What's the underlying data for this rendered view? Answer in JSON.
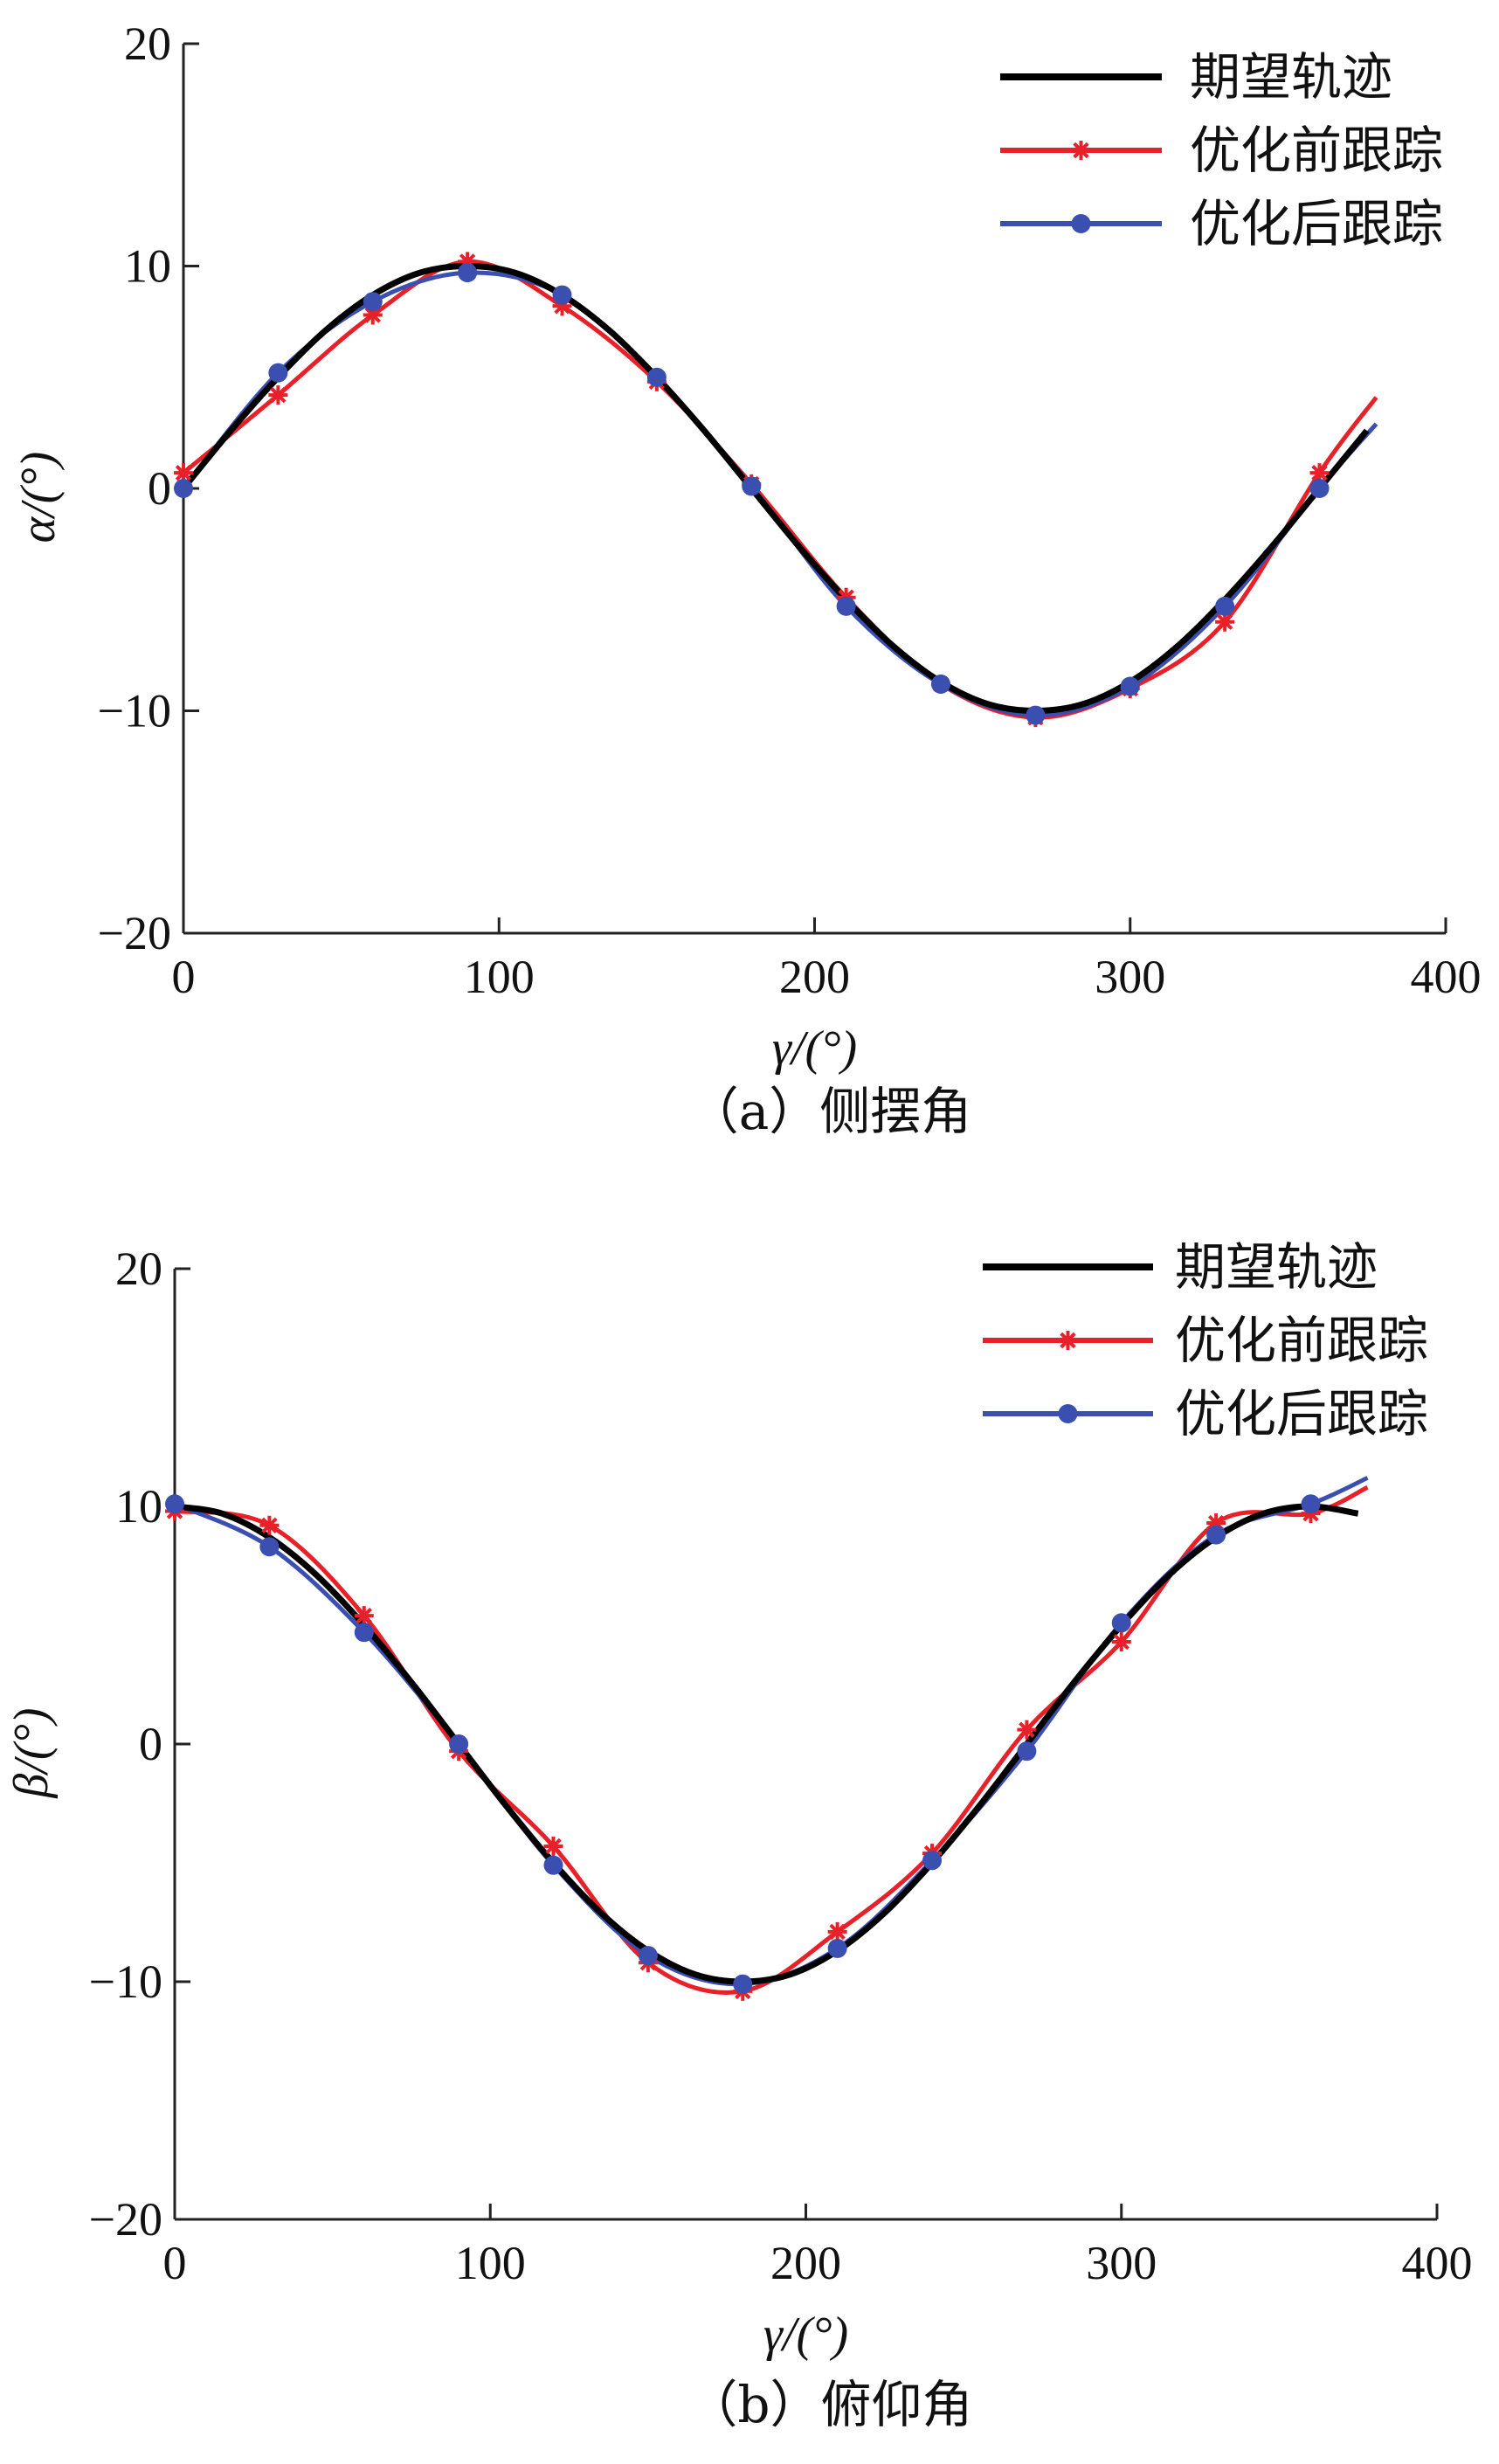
{
  "chart_data": [
    {
      "type": "line",
      "caption": "（a）侧摆角",
      "xlabel": "γ/(°)",
      "ylabel": "α/(°)",
      "xlim": [
        0,
        400
      ],
      "ylim": [
        -20,
        20
      ],
      "xticks": [
        "0",
        "100",
        "200",
        "300",
        "400"
      ],
      "yticks": [
        "20",
        "10",
        "0",
        "−10",
        "−20"
      ],
      "grid": false,
      "legend_position": "top-right",
      "series": [
        {
          "name": "期望轨迹",
          "color": "#000000",
          "marker": "none",
          "x": [
            0,
            15,
            30,
            45,
            60,
            75,
            90,
            105,
            120,
            135,
            150,
            165,
            180,
            195,
            210,
            225,
            240,
            255,
            270,
            285,
            300,
            315,
            330,
            345,
            360,
            375
          ],
          "y": [
            0,
            2.6,
            5.0,
            7.1,
            8.7,
            9.7,
            10.0,
            9.7,
            8.7,
            7.1,
            5.0,
            2.6,
            0,
            -2.6,
            -5.0,
            -7.1,
            -8.7,
            -9.7,
            -10.0,
            -9.7,
            -8.7,
            -7.1,
            -5.0,
            -2.6,
            0,
            2.6
          ]
        },
        {
          "name": "优化前跟踪",
          "color": "#e8202a",
          "marker": "asterisk",
          "x": [
            0,
            30,
            60,
            90,
            120,
            150,
            180,
            210,
            240,
            270,
            300,
            330,
            360,
            378
          ],
          "y": [
            0.7,
            4.2,
            7.8,
            10.2,
            8.2,
            4.8,
            0.2,
            -4.9,
            -8.8,
            -10.3,
            -9.0,
            -6.0,
            0.7,
            4.1
          ],
          "marker_x": [
            0,
            30,
            60,
            90,
            120,
            150,
            180,
            210,
            240,
            270,
            300,
            330,
            360
          ],
          "marker_y": [
            0.7,
            4.2,
            7.8,
            10.2,
            8.2,
            4.8,
            0.2,
            -4.9,
            -8.8,
            -10.3,
            -9.0,
            -6.0,
            0.7
          ]
        },
        {
          "name": "优化后跟踪",
          "color": "#3b4fb0",
          "marker": "circle",
          "x": [
            0,
            30,
            60,
            90,
            120,
            150,
            180,
            210,
            240,
            270,
            300,
            330,
            360,
            378
          ],
          "y": [
            0,
            5.2,
            8.4,
            9.7,
            8.7,
            5.0,
            0.1,
            -5.3,
            -8.8,
            -10.2,
            -8.9,
            -5.3,
            0,
            2.9
          ],
          "marker_x": [
            0,
            30,
            60,
            90,
            120,
            150,
            180,
            210,
            240,
            270,
            300,
            330,
            360
          ],
          "marker_y": [
            0,
            5.2,
            8.4,
            9.7,
            8.7,
            5.0,
            0.1,
            -5.3,
            -8.8,
            -10.2,
            -8.9,
            -5.3,
            0
          ]
        }
      ]
    },
    {
      "type": "line",
      "caption": "（b）俯仰角",
      "xlabel": "γ/(°)",
      "ylabel": "β/(°)",
      "xlim": [
        0,
        400
      ],
      "ylim": [
        -20,
        20
      ],
      "xticks": [
        "0",
        "100",
        "200",
        "300",
        "400"
      ],
      "yticks": [
        "20",
        "10",
        "0",
        "−10",
        "−20"
      ],
      "grid": false,
      "legend_position": "top-right",
      "series": [
        {
          "name": "期望轨迹",
          "color": "#000000",
          "marker": "none",
          "x": [
            0,
            15,
            30,
            45,
            60,
            75,
            90,
            105,
            120,
            135,
            150,
            165,
            180,
            195,
            210,
            225,
            240,
            255,
            270,
            285,
            300,
            315,
            330,
            345,
            360,
            375
          ],
          "y": [
            10.0,
            9.7,
            8.7,
            7.1,
            5.0,
            2.6,
            0,
            -2.6,
            -5.0,
            -7.1,
            -8.7,
            -9.7,
            -10.0,
            -9.7,
            -8.7,
            -7.1,
            -5.0,
            -2.6,
            0,
            2.6,
            5.0,
            7.1,
            8.7,
            9.7,
            10.0,
            9.7
          ]
        },
        {
          "name": "优化前跟踪",
          "color": "#e8202a",
          "marker": "asterisk",
          "x": [
            0,
            30,
            60,
            90,
            120,
            150,
            180,
            210,
            240,
            270,
            300,
            330,
            360,
            378
          ],
          "y": [
            9.8,
            9.2,
            5.4,
            -0.3,
            -4.3,
            -9.2,
            -10.4,
            -7.9,
            -4.6,
            0.6,
            4.3,
            9.3,
            9.7,
            10.8
          ],
          "marker_x": [
            0,
            30,
            60,
            90,
            120,
            150,
            180,
            210,
            240,
            270,
            300,
            330,
            360
          ],
          "marker_y": [
            9.8,
            9.2,
            5.4,
            -0.3,
            -4.3,
            -9.2,
            -10.4,
            -7.9,
            -4.6,
            0.6,
            4.3,
            9.3,
            9.7
          ]
        },
        {
          "name": "优化后跟踪",
          "color": "#3b4fb0",
          "marker": "circle",
          "x": [
            0,
            30,
            60,
            90,
            120,
            150,
            180,
            210,
            240,
            270,
            300,
            330,
            360,
            378
          ],
          "y": [
            10.1,
            8.3,
            4.7,
            0,
            -5.1,
            -8.9,
            -10.1,
            -8.6,
            -4.9,
            -0.3,
            5.1,
            8.8,
            10.1,
            11.2
          ],
          "marker_x": [
            0,
            30,
            60,
            90,
            120,
            150,
            180,
            210,
            240,
            270,
            300,
            330,
            360
          ],
          "marker_y": [
            10.1,
            8.3,
            4.7,
            0,
            -5.1,
            -8.9,
            -10.1,
            -8.6,
            -4.9,
            -0.3,
            5.1,
            8.8,
            10.1
          ]
        }
      ]
    }
  ]
}
